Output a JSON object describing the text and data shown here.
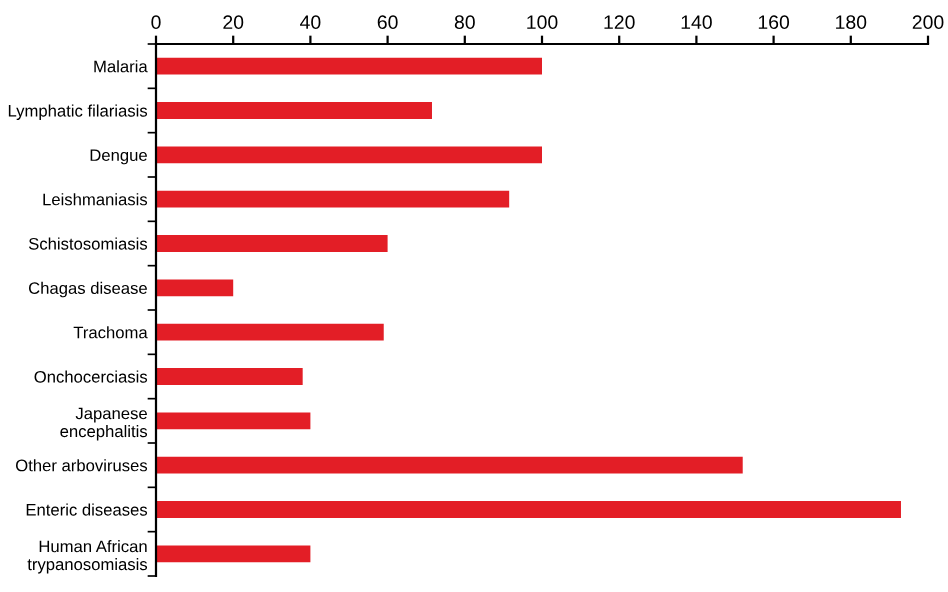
{
  "chart_data": {
    "type": "bar",
    "orientation": "horizontal",
    "categories": [
      "Malaria",
      "Lymphatic filariasis",
      "Dengue",
      "Leishmaniasis",
      "Schistosomiasis",
      "Chagas disease",
      "Trachoma",
      "Onchocerciasis",
      "Japanese\nencephalitis",
      "Other arboviruses",
      "Enteric diseases",
      "Human African\ntrypanosomiasis"
    ],
    "values": [
      100,
      71.5,
      100,
      91.5,
      60,
      20,
      59,
      38,
      40,
      152,
      193,
      40
    ],
    "color": "#e31e26",
    "xlim": [
      0,
      200
    ],
    "xticks": [
      0,
      20,
      40,
      60,
      80,
      100,
      120,
      140,
      160,
      180,
      200
    ],
    "grid": false,
    "legend": false
  }
}
